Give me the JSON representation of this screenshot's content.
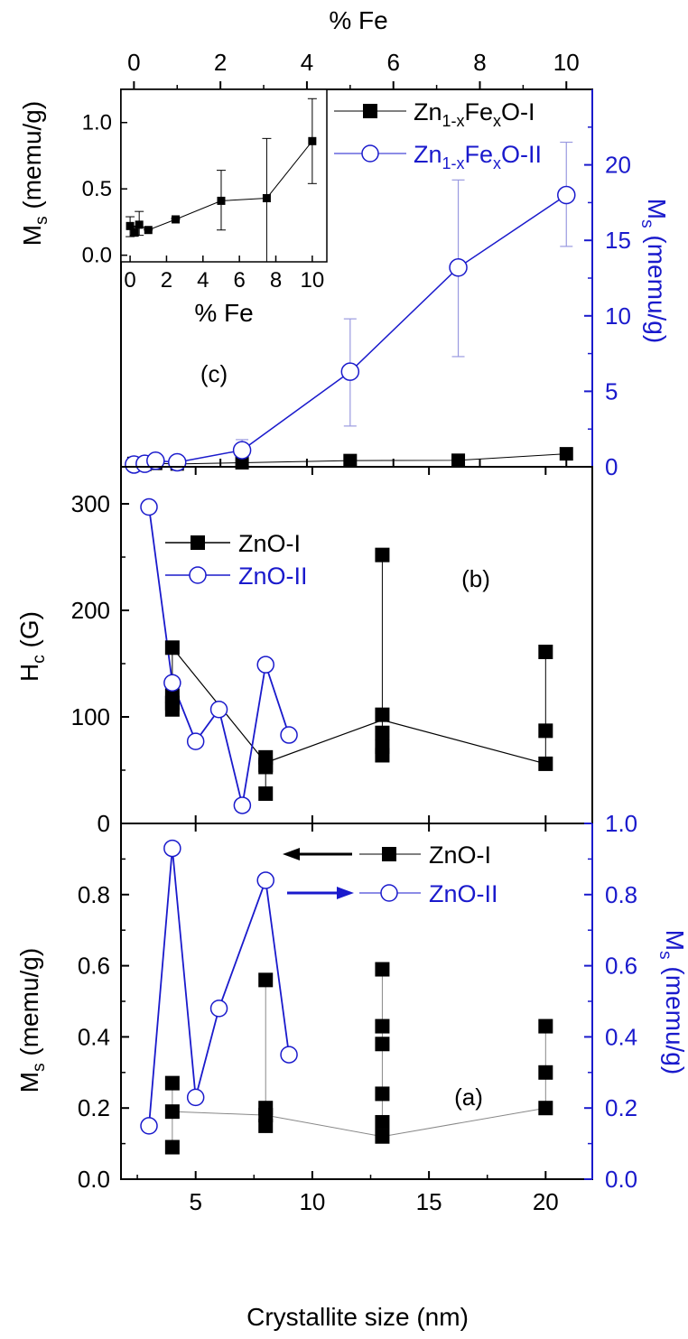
{
  "colors": {
    "black": "#000000",
    "blue": "#1a1acc"
  },
  "chart_data": [
    {
      "panel": "c",
      "type": "line",
      "label": "(c)",
      "xlabel": "% Fe",
      "xlim": [
        -0.3,
        10.6
      ],
      "xticks": [
        "0",
        "2",
        "4",
        "6",
        "8",
        "10"
      ],
      "ylabel_right": "M_s (memu/g)",
      "ylabel_right_main": "M",
      "ylabel_right_sub": "s",
      "ylabel_right_rest": " (memu/g)",
      "ylim_right": [
        0,
        25
      ],
      "yticks_right": [
        "0",
        "5",
        "10",
        "15",
        "20"
      ],
      "legend": [
        {
          "prefix": "Zn",
          "sub1": "1-x",
          "mid": "Fe",
          "sub2": "x",
          "suffix": "O-I"
        },
        {
          "prefix": "Zn",
          "sub1": "1-x",
          "mid": "Fe",
          "sub2": "x",
          "suffix": "O-II"
        }
      ],
      "series": [
        {
          "name": "Zn1-xFexO-I",
          "marker": "filled-square",
          "color": "#000000",
          "x": [
            0,
            0.25,
            0.5,
            1,
            2.5,
            5,
            7.5,
            10
          ],
          "y": [
            0.22,
            0.17,
            0.23,
            0.19,
            0.27,
            0.41,
            0.43,
            0.86
          ]
        },
        {
          "name": "Zn1-xFexO-II",
          "marker": "open-circle",
          "color": "#1a1acc",
          "x": [
            0,
            0.25,
            0.5,
            1,
            2.5,
            5,
            7.5,
            10
          ],
          "y": [
            0.15,
            0.2,
            0.4,
            0.3,
            1.1,
            6.3,
            13.2,
            18.0
          ],
          "err_lo": [
            0,
            0,
            0,
            0,
            0.2,
            2.7,
            7.3,
            14.6
          ],
          "err_hi": [
            0,
            0,
            0,
            0,
            1.8,
            9.8,
            19.0,
            21.5
          ]
        }
      ],
      "inset": {
        "xlabel": "% Fe",
        "ylabel_main": "M",
        "ylabel_sub": "s",
        "ylabel_rest": " (memu/g)",
        "xlim": [
          -0.5,
          10.8
        ],
        "ylim": [
          -0.05,
          1.25
        ],
        "xticks": [
          "0",
          "2",
          "4",
          "6",
          "8",
          "10"
        ],
        "yticks": [
          "0.0",
          "0.5",
          "1.0"
        ],
        "x": [
          0,
          0.25,
          0.5,
          1,
          2.5,
          5,
          7.5,
          10
        ],
        "y": [
          0.22,
          0.17,
          0.23,
          0.19,
          0.27,
          0.41,
          0.43,
          0.86
        ],
        "err_lo": [
          0.14,
          0.15,
          0.15,
          0.19,
          0.27,
          0.19,
          -0.05,
          0.54
        ],
        "err_hi": [
          0.29,
          0.22,
          0.33,
          0.2,
          0.28,
          0.64,
          0.88,
          1.18
        ]
      }
    },
    {
      "panel": "b",
      "type": "line",
      "label": "(b)",
      "ylabel_main": "H",
      "ylabel_sub": "c",
      "ylabel_rest": " (G)",
      "xlim": [
        1.8,
        22.0
      ],
      "ylim": [
        0,
        310
      ],
      "yticks": [
        "0",
        "100",
        "200",
        "300"
      ],
      "legend": [
        "ZnO-I",
        "ZnO-II"
      ],
      "series": [
        {
          "name": "ZnO-I",
          "marker": "filled-square",
          "color": "#000000",
          "path_x": [
            4,
            8,
            13,
            20
          ],
          "path_y": [
            165,
            57,
            97,
            56
          ],
          "points_x": [
            4,
            4,
            4,
            4,
            8,
            8,
            8,
            8,
            13,
            13,
            13,
            13,
            13,
            20,
            20,
            20
          ],
          "points_y": [
            165,
            120,
            113,
            107,
            62,
            55,
            28,
            53,
            252,
            102,
            85,
            72,
            64,
            161,
            87,
            56
          ],
          "vlines": [
            [
              4,
              107,
              165
            ],
            [
              8,
              28,
              62
            ],
            [
              13,
              64,
              252
            ],
            [
              20,
              56,
              161
            ]
          ]
        },
        {
          "name": "ZnO-II",
          "marker": "open-circle",
          "color": "#1a1acc",
          "x": [
            3,
            4,
            5,
            6,
            7,
            8,
            9
          ],
          "y": [
            297,
            132,
            77,
            107,
            17,
            149,
            83
          ]
        }
      ]
    },
    {
      "panel": "a",
      "type": "line",
      "label": "(a)",
      "xlabel": "Crystallite size (nm)",
      "xlim": [
        1.8,
        22.0
      ],
      "xticks": [
        "5",
        "10",
        "15",
        "20"
      ],
      "ylabel_main": "M",
      "ylabel_sub": "s",
      "ylabel_rest": " (memu/g)",
      "ylim": [
        0,
        1.0
      ],
      "yticks": [
        "0.0",
        "0.2",
        "0.4",
        "0.6",
        "0.8"
      ],
      "ylabel_right_main": "M",
      "ylabel_right_sub": "s",
      "ylabel_right_rest": " (memu/g)",
      "ylim_right": [
        0,
        1.0
      ],
      "yticks_right": [
        "0.0",
        "0.2",
        "0.4",
        "0.6",
        "0.8",
        "1.0"
      ],
      "legend": [
        "ZnO-I",
        "ZnO-II"
      ],
      "series": [
        {
          "name": "ZnO-I",
          "marker": "filled-square",
          "color": "#000000",
          "path_x": [
            4,
            8,
            13,
            20
          ],
          "path_y": [
            0.19,
            0.18,
            0.12,
            0.2
          ],
          "points_x": [
            4,
            4,
            4,
            8,
            8,
            8,
            8,
            13,
            13,
            13,
            13,
            13,
            13,
            20,
            20,
            20
          ],
          "points_y": [
            0.27,
            0.19,
            0.09,
            0.56,
            0.2,
            0.18,
            0.15,
            0.59,
            0.43,
            0.38,
            0.24,
            0.16,
            0.12,
            0.43,
            0.3,
            0.2
          ],
          "vlines": [
            [
              4,
              0.09,
              0.27
            ],
            [
              8,
              0.13,
              0.56
            ],
            [
              13,
              0.12,
              0.59
            ],
            [
              20,
              0.2,
              0.43
            ]
          ]
        },
        {
          "name": "ZnO-II",
          "marker": "open-circle",
          "color": "#1a1acc",
          "x": [
            3,
            4,
            5,
            6,
            8,
            9
          ],
          "y": [
            0.15,
            0.93,
            0.23,
            0.48,
            0.84,
            0.35
          ]
        }
      ]
    }
  ]
}
